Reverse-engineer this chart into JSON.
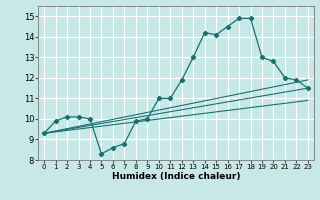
{
  "title": "",
  "xlabel": "Humidex (Indice chaleur)",
  "background_color": "#c8e8e8",
  "grid_color": "#ffffff",
  "line_color": "#1a7070",
  "xlim": [
    -0.5,
    23.5
  ],
  "ylim": [
    8,
    15.5
  ],
  "xticks": [
    0,
    1,
    2,
    3,
    4,
    5,
    6,
    7,
    8,
    9,
    10,
    11,
    12,
    13,
    14,
    15,
    16,
    17,
    18,
    19,
    20,
    21,
    22,
    23
  ],
  "yticks": [
    8,
    9,
    10,
    11,
    12,
    13,
    14,
    15
  ],
  "curve1_x": [
    0,
    1,
    2,
    3,
    4,
    5,
    6,
    7,
    8,
    9,
    10,
    11,
    12,
    13,
    14,
    15,
    16,
    17,
    18,
    19,
    20,
    21,
    22,
    23
  ],
  "curve1_y": [
    9.3,
    9.9,
    10.1,
    10.1,
    10.0,
    8.3,
    8.6,
    8.8,
    9.9,
    10.0,
    11.0,
    11.0,
    11.9,
    13.0,
    14.2,
    14.1,
    14.5,
    14.9,
    14.9,
    13.0,
    12.8,
    12.0,
    11.9,
    11.5
  ],
  "line1_x": [
    0,
    23
  ],
  "line1_y": [
    9.3,
    10.9
  ],
  "line2_x": [
    0,
    23
  ],
  "line2_y": [
    9.3,
    11.5
  ],
  "line3_x": [
    0,
    23
  ],
  "line3_y": [
    9.3,
    11.9
  ]
}
